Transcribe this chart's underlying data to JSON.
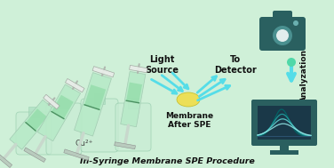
{
  "bg_color": "#cff0d8",
  "title_text": "In-Syringe Membrane SPE Procedure",
  "cu_label": "Cu²⁺",
  "light_source_label": "Light\nSource",
  "to_detector_label": "To\nDetector",
  "membrane_label": "Membrane\nAfter SPE",
  "analyzation_label": "Analyzation",
  "arrow_color": "#55dde8",
  "dark_teal": "#2d6b6b",
  "syringe_body_color": "#b8eac8",
  "syringe_plunger_color": "#c8d8cc",
  "plunger_head_color": "#b8c8bc",
  "membrane_yellow": "#eedf50",
  "monitor_dark": "#2a5f5f",
  "monitor_screen_bg": "#1a3848",
  "curve_colors": [
    "#006868",
    "#20a0a0",
    "#60d0d0",
    "#90e4e4"
  ],
  "camera_color": "#2a6060",
  "camera_lens_outer": "#4a9090",
  "bottle_color": "#c8ecd4",
  "bottle_neck_color": "#aadec0",
  "needle_color": "#b0b8b0",
  "disc_color_white": "#e8ece8",
  "disc_color_yellow": "#e8d840"
}
